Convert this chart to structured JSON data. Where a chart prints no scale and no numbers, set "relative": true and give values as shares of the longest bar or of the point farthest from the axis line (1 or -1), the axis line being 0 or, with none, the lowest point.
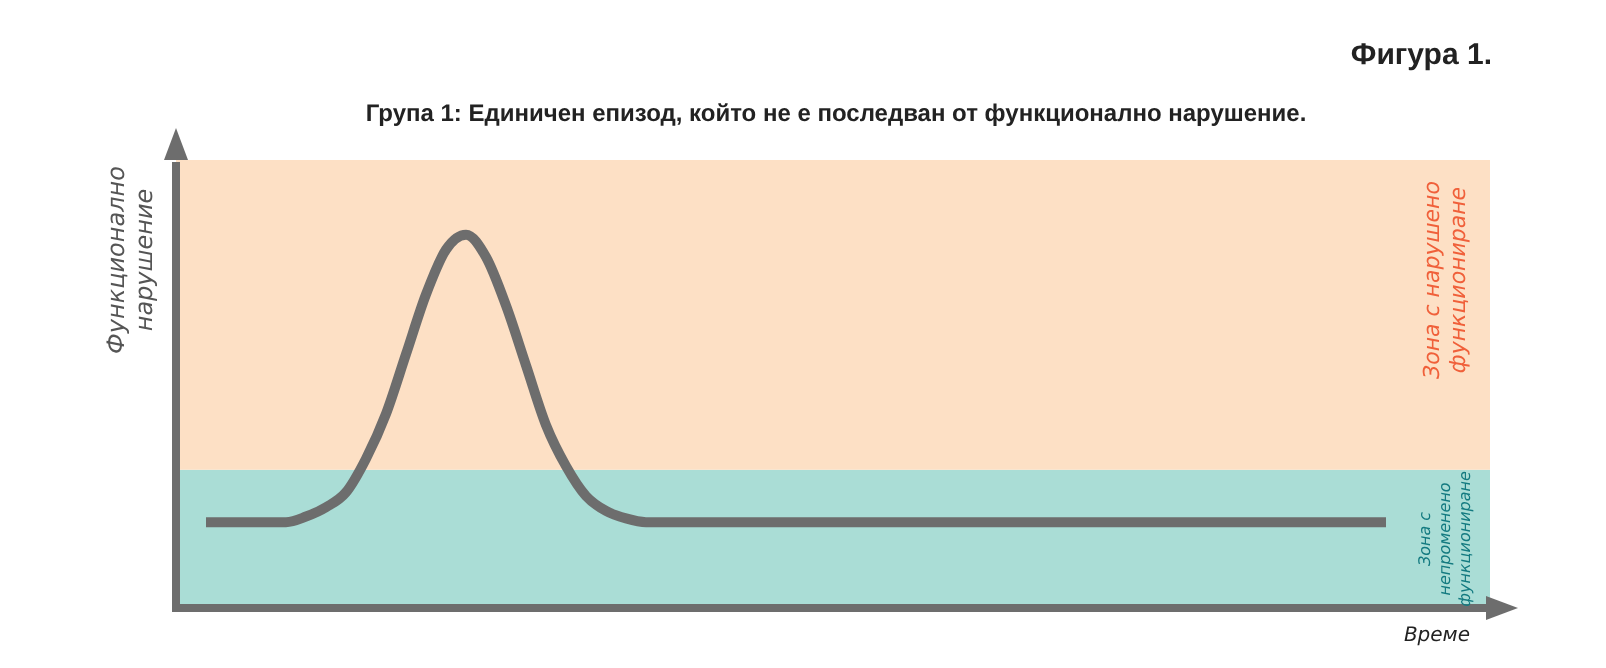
{
  "chart_data": {
    "type": "line",
    "relative": true,
    "title": "Фигура 1.",
    "subtitle": "Група 1: Единичен епизод, който не е последван от функционално нарушение.",
    "xlabel": "Време",
    "ylabel": "Функционално нарушение",
    "categories": [
      null,
      null,
      null,
      null,
      null,
      null,
      null,
      null,
      null,
      null,
      null,
      null,
      null,
      null,
      null,
      null,
      null,
      null,
      null,
      null,
      null,
      null,
      null,
      null,
      null,
      null,
      null,
      null,
      null,
      null,
      null,
      null,
      null,
      null,
      null,
      null,
      null,
      null,
      null,
      null,
      null,
      null,
      null,
      null,
      null,
      null,
      null,
      null,
      null,
      null,
      null,
      null,
      null,
      null,
      null,
      null,
      null,
      null,
      null,
      null
    ],
    "series": [
      {
        "color": "#6d6d6d",
        "values": [
          0.23,
          0.23,
          0.23,
          0.23,
          0.23,
          0.245,
          0.27,
          0.31,
          0.4,
          0.52,
          0.68,
          0.84,
          0.96,
          1,
          0.94,
          0.81,
          0.65,
          0.49,
          0.38,
          0.3,
          0.26,
          0.24,
          0.23,
          0.23,
          0.23,
          0.23,
          0.23,
          0.23,
          0.23,
          0.23,
          0.23,
          0.23,
          0.23,
          0.23,
          0.23,
          0.23,
          0.23,
          0.23,
          0.23,
          0.23,
          0.23,
          0.23,
          0.23,
          0.23,
          0.23,
          0.23,
          0.23,
          0.23,
          0.23,
          0.23,
          0.23,
          0.23,
          0.23,
          0.23,
          0.23,
          0.23,
          0.23,
          0.23,
          0.23,
          0.23
        ]
      }
    ],
    "bands": [
      {
        "axis": "y",
        "from": 0,
        "to": 0.37,
        "label": "Зона с непроменено функциониране",
        "color": "#aaddd6"
      },
      {
        "axis": "y",
        "from": 0.37,
        "to": 1.2,
        "label": "Зона с нарушено функциониране",
        "color": "#fde0c5"
      }
    ],
    "legend": false,
    "marker": "none",
    "line_style": "solid"
  }
}
